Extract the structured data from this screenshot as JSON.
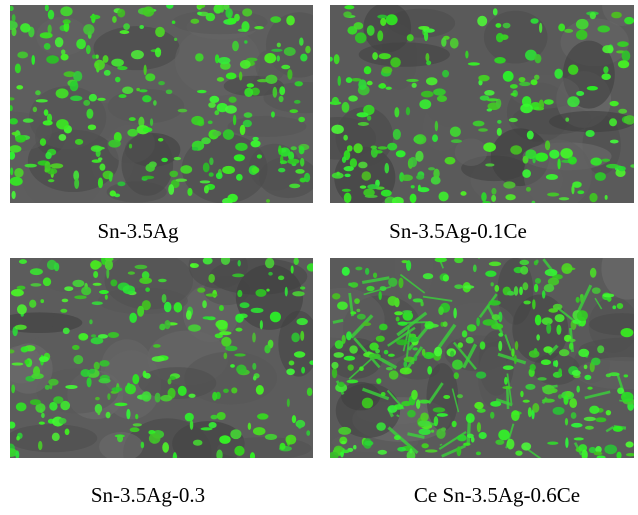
{
  "panels": [
    {
      "caption": "Sn-3.5Ag"
    },
    {
      "caption": "Sn-3.5Ag-0.1Ce"
    },
    {
      "caption": "Sn-3.5Ag-0.3"
    },
    {
      "caption": "Ce Sn-3.5Ag-0.6Ce"
    }
  ]
}
